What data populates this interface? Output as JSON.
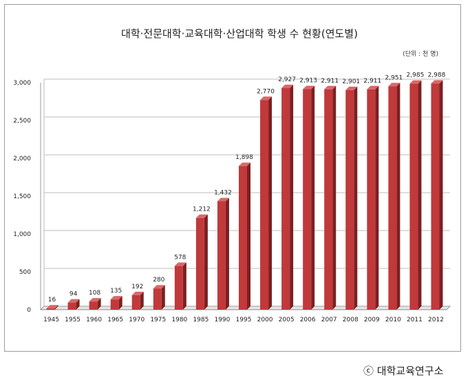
{
  "chart_data": {
    "type": "bar",
    "title": "대학·전문대학·교육대학·산업대학 학생 수 현황(연도별)",
    "unit_note": "(단위 : 천 명)",
    "categories": [
      "1945",
      "1955",
      "1960",
      "1965",
      "1970",
      "1975",
      "1980",
      "1985",
      "1990",
      "1995",
      "2000",
      "2005",
      "2006",
      "2007",
      "2008",
      "2009",
      "2010",
      "2011",
      "2012"
    ],
    "values": [
      16,
      94,
      108,
      135,
      192,
      280,
      578,
      1212,
      1432,
      1898,
      2770,
      2927,
      2913,
      2911,
      2901,
      2911,
      2951,
      2985,
      2988
    ],
    "value_labels": [
      "16",
      "94",
      "108",
      "135",
      "192",
      "280",
      "578",
      "1,212",
      "1,432",
      "1,898",
      "2,770",
      "2,927",
      "2,913",
      "2,911",
      "2,901",
      "2,911",
      "2,951",
      "2,985",
      "2,988"
    ],
    "y_ticks": [
      0,
      500,
      1000,
      1500,
      2000,
      2500,
      3000
    ],
    "y_tick_labels": [
      "0",
      "500",
      "1,000",
      "1,500",
      "2,000",
      "2,500",
      "3,000"
    ],
    "ylim": [
      0,
      3000
    ],
    "xlabel": "",
    "ylabel": "",
    "grid": true,
    "bar_color": "#c0393b"
  },
  "credit": "ⓒ 대학교육연구소"
}
